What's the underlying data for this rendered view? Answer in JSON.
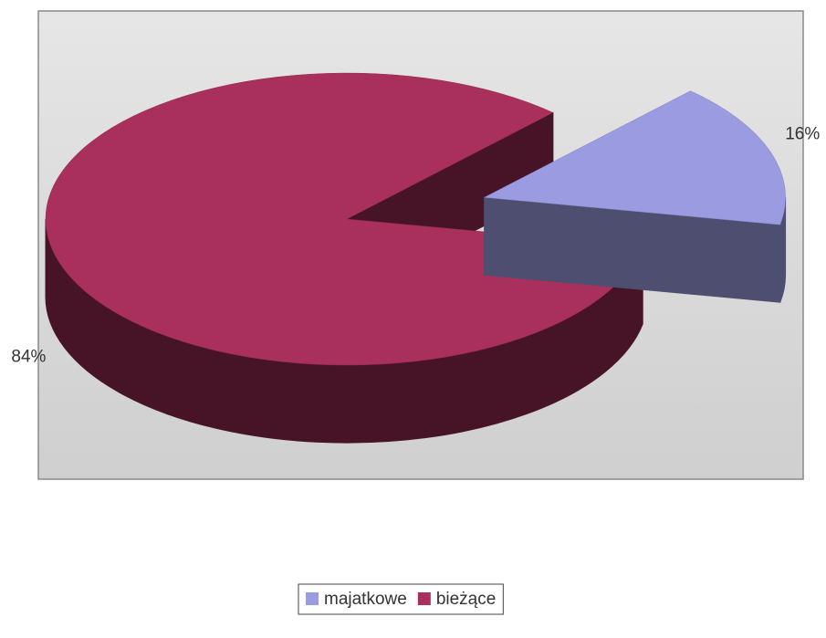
{
  "chart_data": {
    "type": "pie3d",
    "categories": [
      "majatkowe",
      "bieżące"
    ],
    "values": [
      16,
      84
    ],
    "value_labels": [
      "16%",
      "84%"
    ],
    "colors": [
      "#9b9be2",
      "#a9305c"
    ],
    "exploded": [
      true,
      false
    ],
    "legend": "bottom"
  }
}
